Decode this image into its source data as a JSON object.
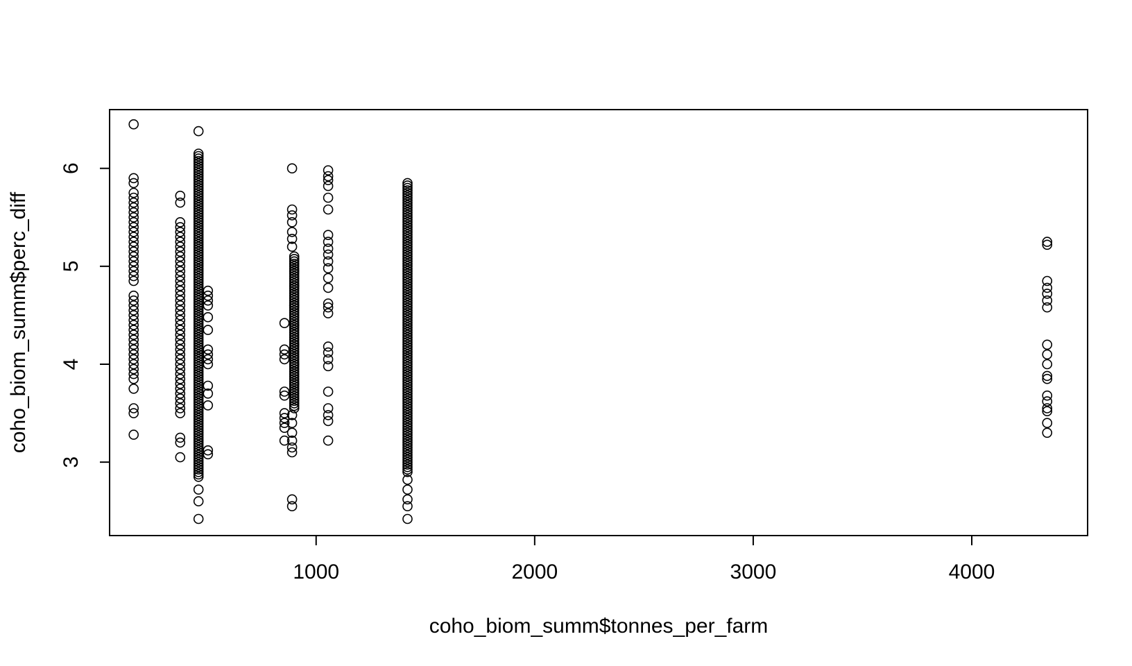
{
  "chart_data": {
    "type": "scatter",
    "title": "",
    "xlabel": "coho_biom_summ$tonnes_per_farm",
    "ylabel": "coho_biom_summ$perc_diff",
    "xlim": [
      55,
      4530
    ],
    "ylim": [
      2.25,
      6.6
    ],
    "xticks": [
      1000,
      2000,
      3000,
      4000
    ],
    "yticks": [
      3,
      4,
      5,
      6
    ],
    "xtick_labels": [
      "1000",
      "2000",
      "3000",
      "4000"
    ],
    "ytick_labels": [
      "3",
      "4",
      "5",
      "6"
    ],
    "grid": false,
    "legend": "none",
    "marker": "open-circle",
    "color": "#000000",
    "clusters": [
      {
        "x": 165,
        "y_values": [
          6.45,
          5.9,
          5.85,
          5.75,
          5.7,
          5.65,
          5.6,
          5.55,
          5.5,
          5.45,
          5.4,
          5.35,
          5.3,
          5.25,
          5.2,
          5.15,
          5.1,
          5.05,
          5.0,
          4.95,
          4.9,
          4.85,
          4.7,
          4.65,
          4.6,
          4.55,
          4.5,
          4.45,
          4.4,
          4.35,
          4.3,
          4.25,
          4.2,
          4.15,
          4.1,
          4.05,
          4.0,
          3.95,
          3.9,
          3.85,
          3.75,
          3.55,
          3.5,
          3.28
        ]
      },
      {
        "x": 378,
        "y_values": [
          5.72,
          5.65,
          5.45,
          5.4,
          5.35,
          5.3,
          5.25,
          5.2,
          5.15,
          5.1,
          5.05,
          5.0,
          4.95,
          4.9,
          4.85,
          4.8,
          4.75,
          4.7,
          4.65,
          4.6,
          4.55,
          4.5,
          4.45,
          4.4,
          4.35,
          4.3,
          4.25,
          4.2,
          4.15,
          4.1,
          4.05,
          4.0,
          3.95,
          3.9,
          3.85,
          3.8,
          3.75,
          3.7,
          3.65,
          3.6,
          3.55,
          3.5,
          3.25,
          3.2,
          3.05
        ]
      },
      {
        "x": 505,
        "y_values": [
          4.75,
          4.7,
          4.65,
          4.6,
          4.48,
          4.35,
          4.15,
          4.1,
          4.05,
          4.0,
          3.78,
          3.7,
          3.58,
          3.12,
          3.08
        ]
      },
      {
        "x": 855,
        "y_values": [
          4.42,
          4.15,
          4.1,
          4.05,
          3.72,
          3.68,
          3.5,
          3.45,
          3.4,
          3.35,
          3.22
        ]
      },
      {
        "x": 890,
        "y_values": [
          6.0,
          5.58,
          5.52,
          5.45,
          5.35,
          5.28,
          5.2,
          3.48,
          3.4,
          3.3,
          3.22,
          3.15,
          3.1,
          2.62,
          2.55
        ]
      },
      {
        "x": 1055,
        "y_values": [
          5.98,
          5.92,
          5.88,
          5.82,
          5.7,
          5.58,
          5.32,
          5.25,
          5.18,
          5.12,
          5.05,
          4.98,
          4.88,
          4.78,
          4.62,
          4.58,
          4.52,
          4.18,
          4.12,
          4.05,
          3.98,
          3.72,
          3.55,
          3.48,
          3.42,
          3.22
        ]
      }
    ],
    "dense_columns": [
      {
        "x": 462,
        "y_min": 2.85,
        "y_max": 6.15,
        "extra_y_values": [
          6.38,
          2.72,
          2.6,
          2.42
        ]
      },
      {
        "x": 900,
        "y_min": 3.55,
        "y_max": 5.12,
        "extra_y_values": [
          4.95,
          4.8,
          4.6,
          4.4,
          4.2,
          4.0,
          3.8
        ]
      },
      {
        "x": 1418,
        "y_min": 2.9,
        "y_max": 5.85,
        "extra_y_values": [
          2.82,
          2.72,
          2.62,
          2.55,
          2.42
        ]
      }
    ],
    "cluster_far": {
      "x": 4345,
      "y_values": [
        5.25,
        5.22,
        4.85,
        4.78,
        4.72,
        4.65,
        4.58,
        4.2,
        4.1,
        4.0,
        3.88,
        3.85,
        3.68,
        3.62,
        3.55,
        3.52,
        3.4,
        3.3
      ]
    }
  }
}
